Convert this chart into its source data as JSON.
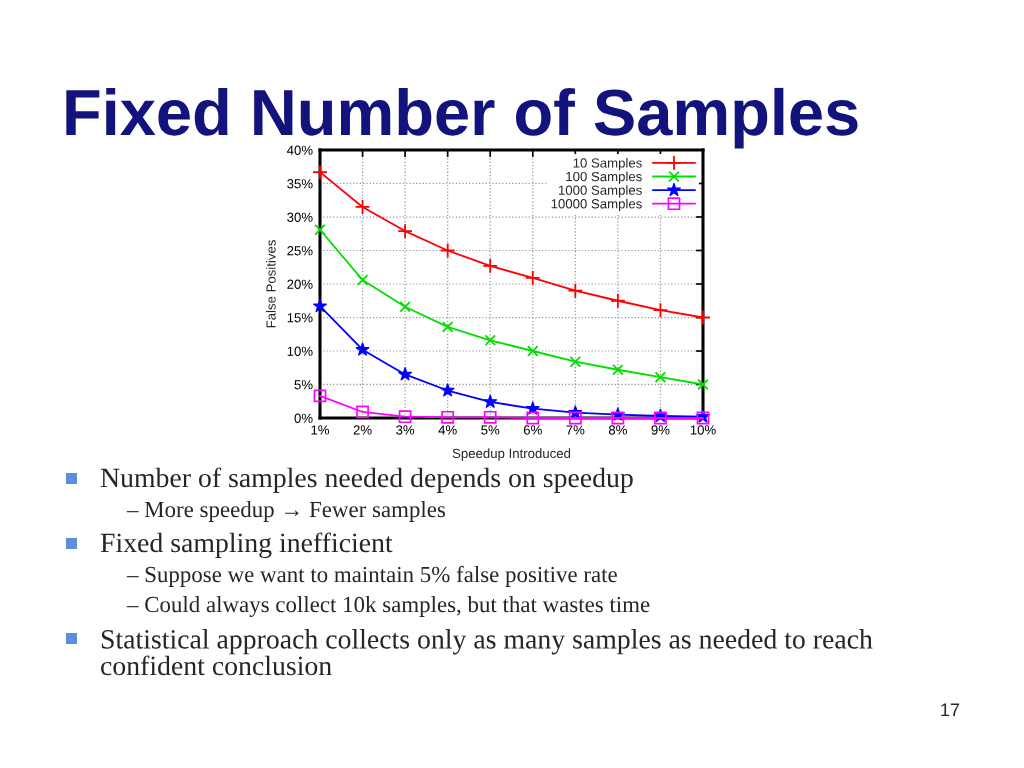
{
  "chart_data": {
    "type": "line",
    "title": "Fixed Number of Samples",
    "xlabel": "Speedup Introduced",
    "ylabel": "False Positives",
    "x": [
      1,
      2,
      3,
      4,
      5,
      6,
      7,
      8,
      9,
      10
    ],
    "series": [
      {
        "name": "10 Samples",
        "color": "#ff0000",
        "marker": "plus",
        "values": [
          36.7,
          31.5,
          27.9,
          25.0,
          22.7,
          20.9,
          19.0,
          17.5,
          16.1,
          15.0
        ]
      },
      {
        "name": "100 Samples",
        "color": "#00e000",
        "marker": "cross",
        "values": [
          28.1,
          20.6,
          16.6,
          13.6,
          11.6,
          10.0,
          8.4,
          7.2,
          6.1,
          5.0
        ]
      },
      {
        "name": "1000 Samples",
        "color": "#0000ff",
        "marker": "star",
        "values": [
          16.7,
          10.2,
          6.5,
          4.1,
          2.4,
          1.4,
          0.8,
          0.5,
          0.3,
          0.2
        ]
      },
      {
        "name": "10000 Samples",
        "color": "#ff00ff",
        "marker": "square",
        "values": [
          3.3,
          0.9,
          0.2,
          0.1,
          0.1,
          0,
          0,
          0,
          0,
          0
        ]
      }
    ],
    "xlim": [
      1,
      10
    ],
    "xticks": [
      {
        "value": 1,
        "label": "1%"
      },
      {
        "value": 2,
        "label": "2%"
      },
      {
        "value": 3,
        "label": "3%"
      },
      {
        "value": 4,
        "label": "4%"
      },
      {
        "value": 5,
        "label": "5%"
      },
      {
        "value": 6,
        "label": "6%"
      },
      {
        "value": 7,
        "label": "7%"
      },
      {
        "value": 8,
        "label": "8%"
      },
      {
        "value": 9,
        "label": "9%"
      },
      {
        "value": 10,
        "label": "10%"
      }
    ],
    "ylim": [
      0,
      40
    ],
    "yticks": [
      {
        "value": 0,
        "label": "0%"
      },
      {
        "value": 5,
        "label": "5%"
      },
      {
        "value": 10,
        "label": "10%"
      },
      {
        "value": 15,
        "label": "15%"
      },
      {
        "value": 20,
        "label": "20%"
      },
      {
        "value": 25,
        "label": "25%"
      },
      {
        "value": 30,
        "label": "30%"
      },
      {
        "value": 35,
        "label": "35%"
      },
      {
        "value": 40,
        "label": "40%"
      }
    ],
    "grid": true,
    "legend": "top right",
    "line_style": "solid",
    "annotations": [
      "Number of samples needed depends on speedup",
      "– More speedup → Fewer samples",
      "Fixed sampling inefficient",
      "– Suppose we want to maintain 5% false positive rate",
      "– Could always collect 10k samples, but that wastes time",
      "Statistical approach collects only as many samples as needed to reach\nconfident conclusion",
      "17"
    ]
  }
}
